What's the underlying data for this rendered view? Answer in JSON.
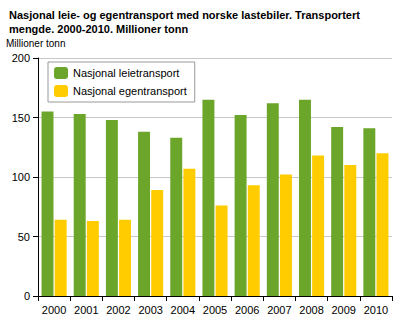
{
  "chart_data": {
    "type": "bar",
    "title": "Nasjonal leie- og egentransport med norske lastebiler. Transportert mengde. 2000-2010. Millioner tonn",
    "y_label": "Millioner tonn",
    "categories": [
      "2000",
      "2001",
      "2002",
      "2003",
      "2004",
      "2005",
      "2006",
      "2007",
      "2008",
      "2009",
      "2010"
    ],
    "series": [
      {
        "name": "Nasjonal leietransport",
        "color": "#6ba52a",
        "values": [
          155,
          153,
          148,
          138,
          133,
          165,
          152,
          162,
          165,
          142,
          141
        ]
      },
      {
        "name": "Nasjonal egentransport",
        "color": "#ffcc00",
        "values": [
          64,
          63,
          64,
          89,
          107,
          76,
          93,
          102,
          118,
          110,
          120
        ]
      }
    ],
    "ylim": [
      0,
      200
    ],
    "yticks": [
      0,
      50,
      100,
      150,
      200
    ],
    "grid": true,
    "legend": "upper left"
  }
}
